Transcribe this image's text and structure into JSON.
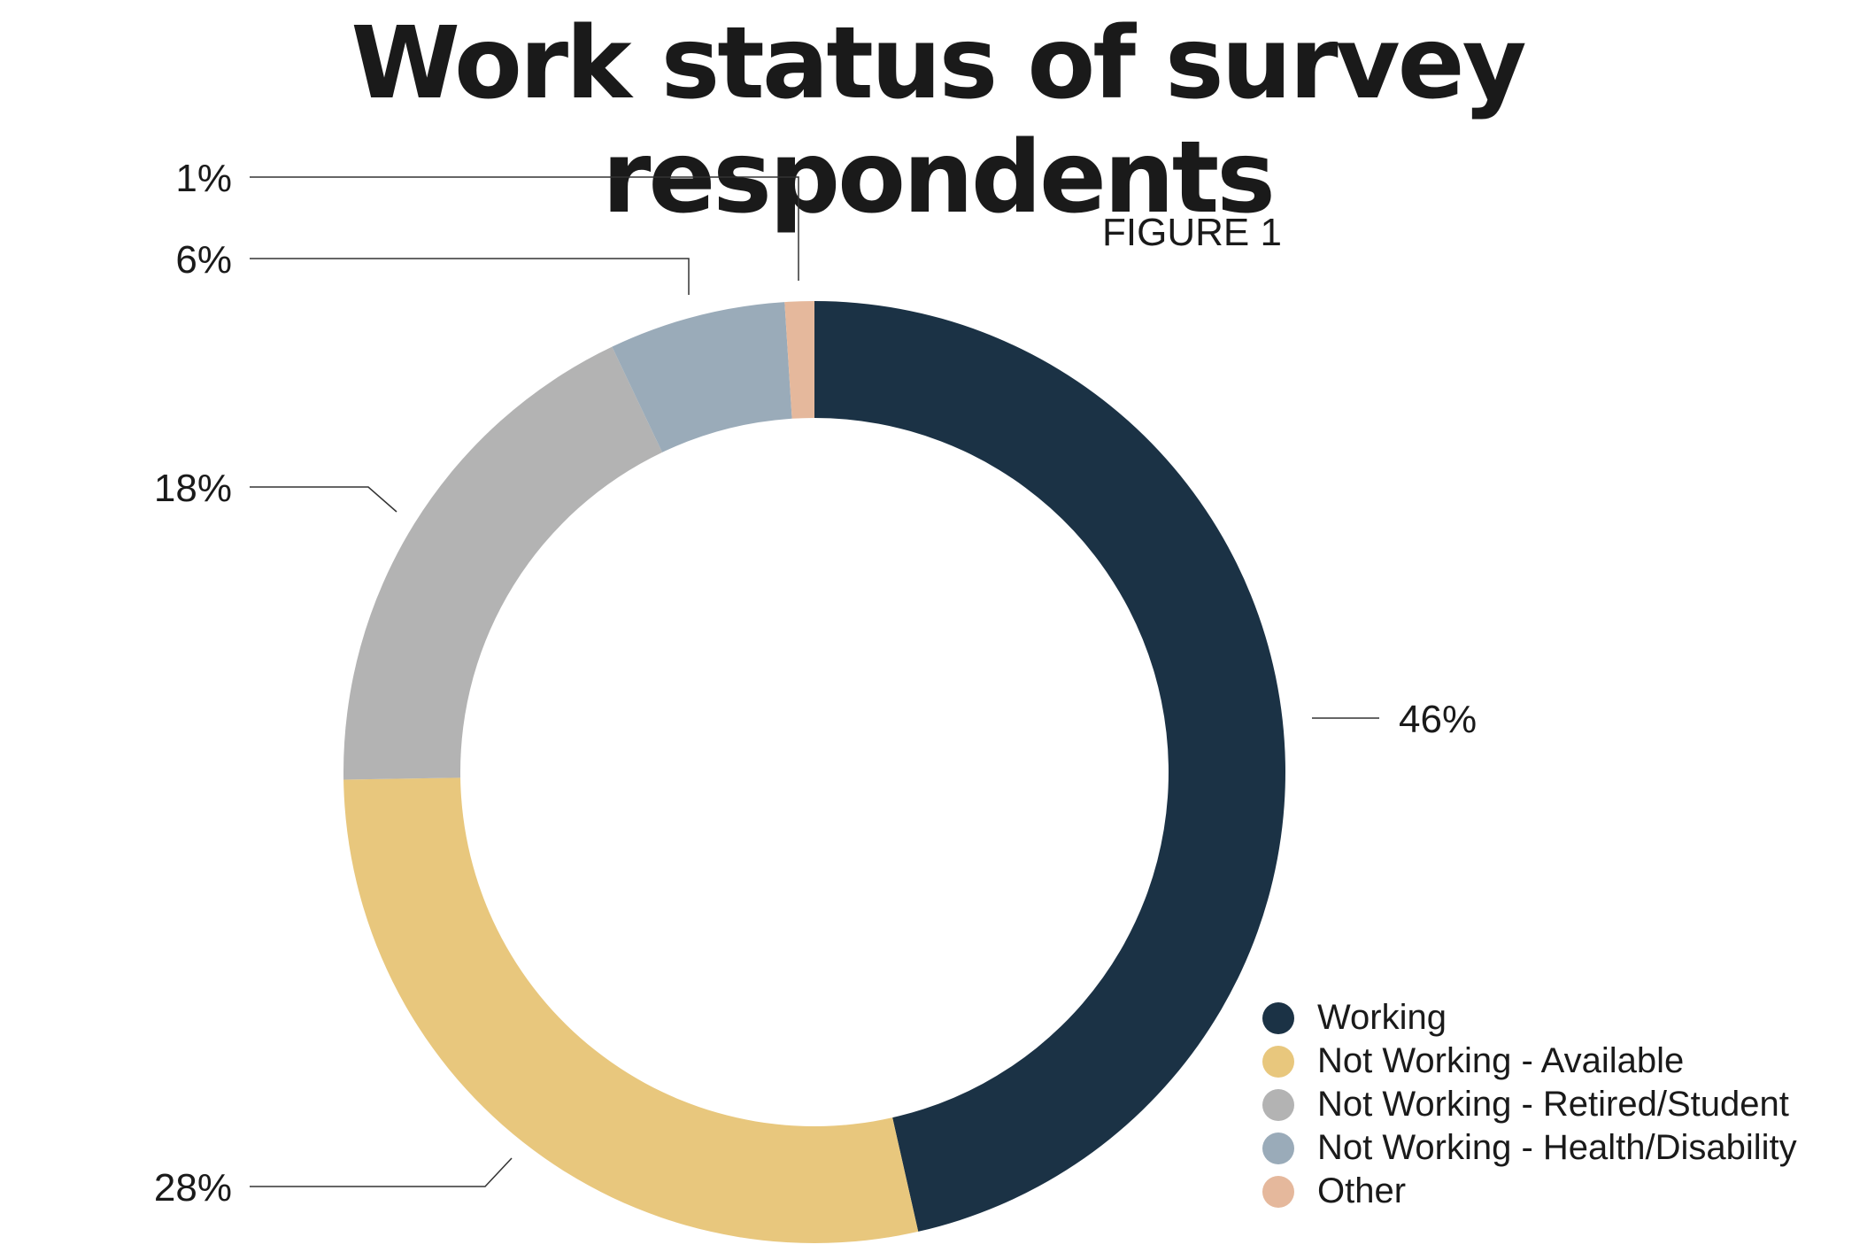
{
  "title": "Work status of survey respondents",
  "figure_label": "FIGURE 1",
  "chart_data": {
    "type": "pie",
    "style": "donut",
    "categories": [
      "Working",
      "Not Working - Available",
      "Not Working - Retired/Student",
      "Not Working - Health/Disability",
      "Other"
    ],
    "values": [
      46,
      28,
      18,
      6,
      1
    ],
    "value_labels": [
      "46%",
      "28%",
      "18%",
      "6%",
      "1%"
    ],
    "colors": [
      "#1b3245",
      "#e8c77d",
      "#b3b3b3",
      "#9aabb9",
      "#e5b89c"
    ],
    "legend_placement": "bottom-right"
  }
}
